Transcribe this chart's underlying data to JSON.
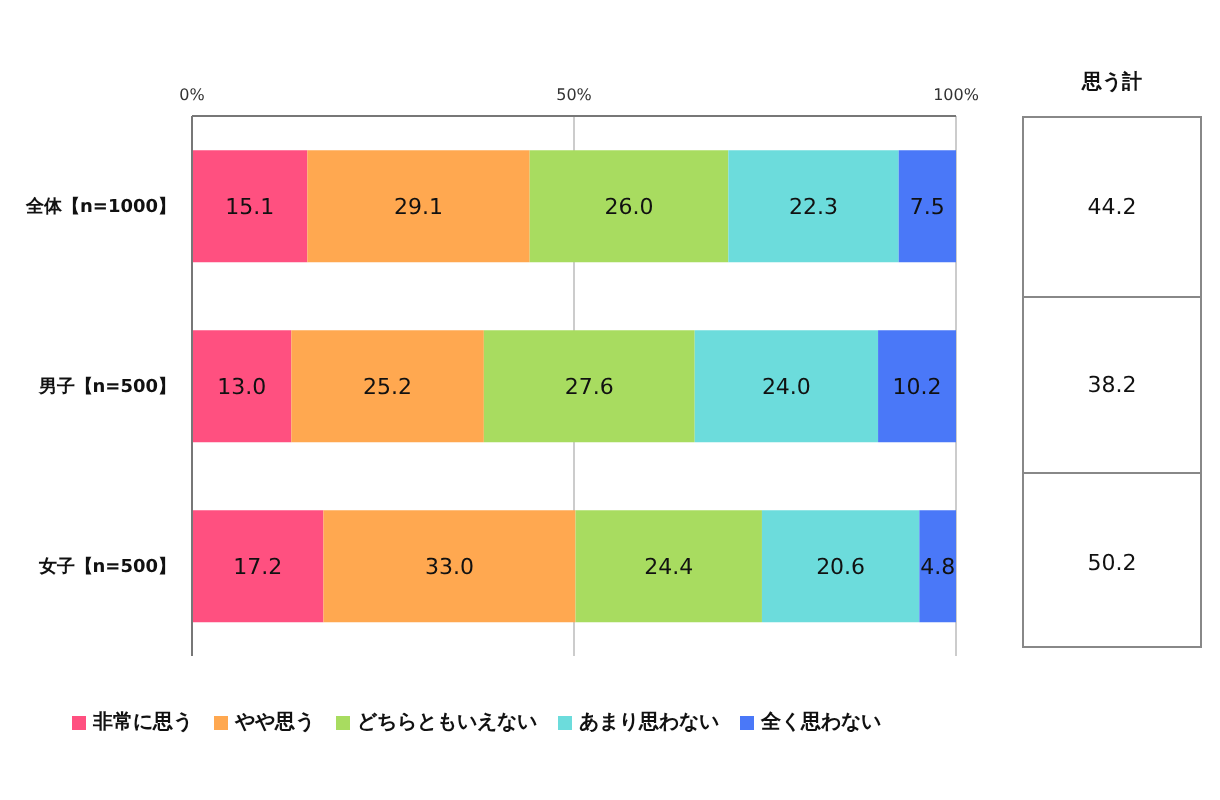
{
  "chart_data": {
    "type": "bar",
    "orientation": "horizontal",
    "stacked": true,
    "categories": [
      "全体【n=1000】",
      "男子【n=500】",
      "女子【n=500】"
    ],
    "series": [
      {
        "name": "非常に思う",
        "color": "#ff5080",
        "values": [
          15.1,
          13.0,
          17.2
        ],
        "value_labels": [
          "15.1",
          "13.0",
          "17.2"
        ]
      },
      {
        "name": "やや思う",
        "color": "#ffa850",
        "values": [
          29.1,
          25.2,
          33.0
        ],
        "value_labels": [
          "29.1",
          "25.2",
          "33.0"
        ]
      },
      {
        "name": "どちらともいえない",
        "color": "#a8dc60",
        "values": [
          26.0,
          27.6,
          24.4
        ],
        "value_labels": [
          "26.0",
          "27.6",
          "24.4"
        ]
      },
      {
        "name": "あまり思わない",
        "color": "#6cdcdc",
        "values": [
          22.3,
          24.0,
          20.6
        ],
        "value_labels": [
          "22.3",
          "24.0",
          "20.6"
        ]
      },
      {
        "name": "全く思わない",
        "color": "#4a78f8",
        "values": [
          7.5,
          10.2,
          4.8
        ],
        "value_labels": [
          "7.5",
          "10.2",
          "4.8"
        ]
      }
    ],
    "xlim": [
      0,
      100
    ],
    "xticks": [
      {
        "value": 0,
        "label": "0%"
      },
      {
        "value": 50,
        "label": "50%"
      },
      {
        "value": 100,
        "label": "100%"
      }
    ],
    "grid": "x",
    "legend": "bottom",
    "annotations": [
      "思う計",
      "44.2",
      "38.2",
      "50.2"
    ]
  }
}
